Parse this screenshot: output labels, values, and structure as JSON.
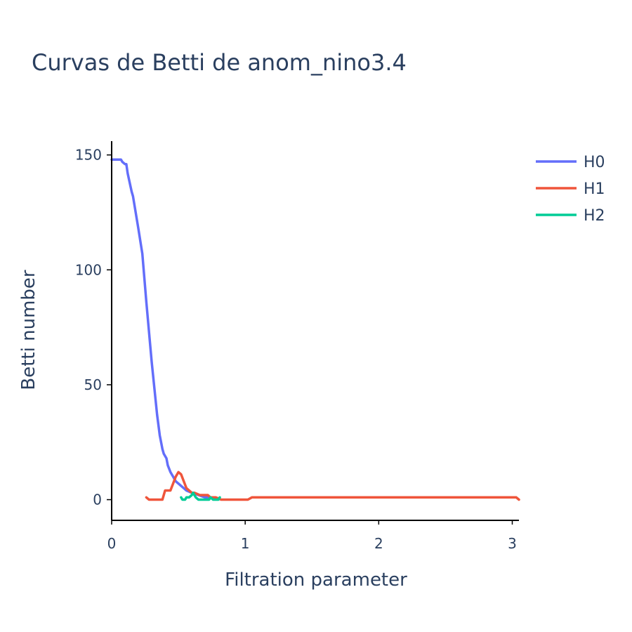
{
  "chart_data": {
    "type": "line",
    "title": "Curvas de Betti de anom_nino3.4",
    "xlabel": "Filtration parameter",
    "ylabel": "Betti number",
    "xlim": [
      0,
      3.05
    ],
    "ylim": [
      -9,
      156
    ],
    "xticks": [
      0,
      1,
      2,
      3
    ],
    "yticks": [
      0,
      50,
      100,
      150
    ],
    "grid": false,
    "legend_position": "top-right",
    "series": [
      {
        "name": "H0",
        "color": "#636efa",
        "x": [
          0,
          0.07,
          0.08,
          0.1,
          0.11,
          0.12,
          0.15,
          0.16,
          0.2,
          0.23,
          0.24,
          0.26,
          0.3,
          0.34,
          0.36,
          0.38,
          0.39,
          0.41,
          0.42,
          0.44,
          0.46,
          0.48,
          0.5,
          0.52,
          0.54,
          0.56,
          0.6,
          0.65,
          0.7,
          0.75
        ],
        "y": [
          148,
          148,
          147,
          146,
          146,
          142,
          134,
          132,
          118,
          107,
          100,
          86,
          60,
          37,
          28,
          22,
          20,
          18,
          15,
          12,
          10,
          8,
          7,
          6,
          5,
          4,
          3,
          2,
          1,
          1
        ]
      },
      {
        "name": "H1",
        "color": "#ef553b",
        "x": [
          0.26,
          0.28,
          0.3,
          0.32,
          0.34,
          0.36,
          0.38,
          0.4,
          0.42,
          0.44,
          0.46,
          0.48,
          0.5,
          0.52,
          0.54,
          0.56,
          0.58,
          0.6,
          0.62,
          0.66,
          0.7,
          0.72,
          0.74,
          0.78,
          0.82,
          0.9,
          1.02,
          1.05,
          1.5,
          2.0,
          2.5,
          3.0,
          3.03,
          3.05
        ],
        "y": [
          1,
          0,
          0,
          0,
          0,
          0,
          0,
          4,
          4,
          4,
          7,
          10,
          12,
          11,
          8,
          5,
          4,
          3,
          3,
          2,
          2,
          2,
          1,
          1,
          0,
          0,
          0,
          1,
          1,
          1,
          1,
          1,
          1,
          0
        ]
      },
      {
        "name": "H2",
        "color": "#00cc96",
        "x": [
          0.52,
          0.53,
          0.55,
          0.56,
          0.58,
          0.6,
          0.61,
          0.63,
          0.65,
          0.67,
          0.69,
          0.71,
          0.73,
          0.74,
          0.76,
          0.78,
          0.8,
          0.81
        ],
        "y": [
          1,
          0,
          0,
          1,
          1,
          2,
          3,
          1,
          0,
          0,
          0,
          0,
          0,
          1,
          0,
          0,
          0,
          1
        ]
      }
    ]
  }
}
